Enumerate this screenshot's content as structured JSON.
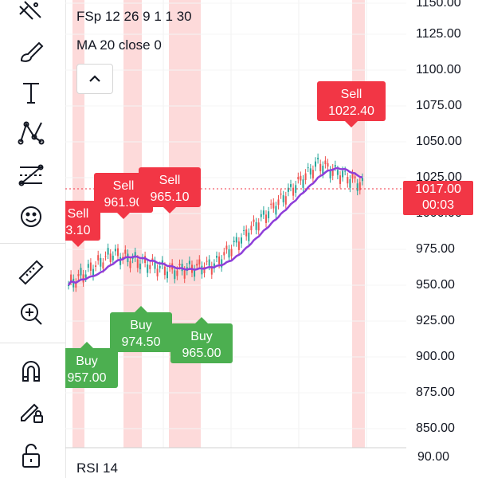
{
  "legend": {
    "symbol_line": "FSp 12 26 9 1 1 30",
    "ma_line": "MA 20 close 0"
  },
  "toolbar": {
    "tools": [
      {
        "name": "crosshair-lines-icon"
      },
      {
        "name": "brush-icon"
      },
      {
        "name": "text-icon"
      },
      {
        "name": "pattern-icon"
      },
      {
        "name": "fib-icon"
      },
      {
        "name": "emoji-icon"
      },
      {
        "name": "ruler-icon"
      },
      {
        "name": "zoom-in-icon"
      },
      {
        "name": "magnet-icon"
      },
      {
        "name": "lock-edit-icon"
      },
      {
        "name": "unlock-icon"
      }
    ]
  },
  "price_axis": {
    "ticks": [
      "1150.00",
      "1125.00",
      "1100.00",
      "1075.00",
      "1050.00",
      "1025.00",
      "1000.00",
      "975.00",
      "950.00",
      "925.00",
      "900.00",
      "875.00",
      "850.00"
    ],
    "current_price": "1017.00",
    "countdown": "00:03"
  },
  "rsi": {
    "label": "RSI 14",
    "tick": "90.00"
  },
  "signals": [
    {
      "type": "Sell",
      "value": "3.10"
    },
    {
      "type": "Sell",
      "value": "961.90"
    },
    {
      "type": "Sell",
      "value": "965.10"
    },
    {
      "type": "Sell",
      "value": "1022.40"
    },
    {
      "type": "Buy",
      "value": "957.00"
    },
    {
      "type": "Buy",
      "value": "974.50"
    },
    {
      "type": "Buy",
      "value": "965.00"
    }
  ],
  "colors": {
    "sell": "#f23645",
    "buy": "#4caf50",
    "band": "#fcd1d1",
    "ma": "#8e3ed9",
    "candle_up": "#26a69a",
    "candle_down": "#ef5350"
  }
}
